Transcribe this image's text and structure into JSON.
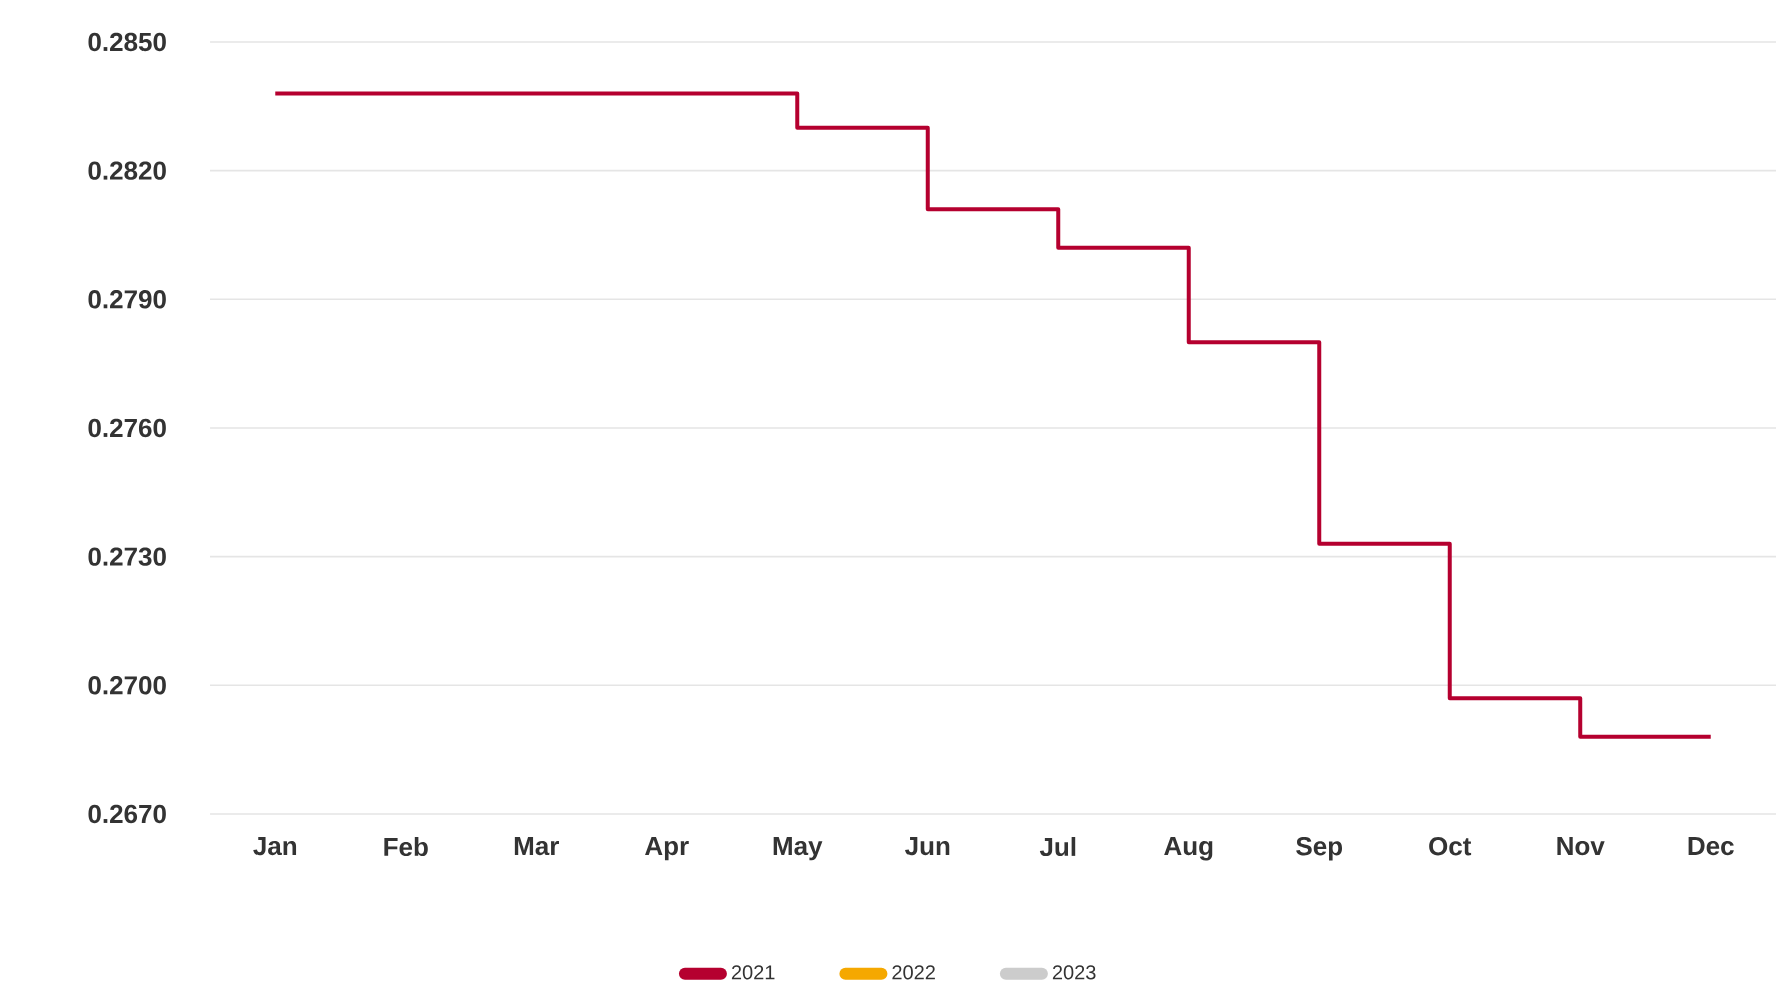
{
  "chart_data": {
    "type": "step",
    "categories": [
      "Jan",
      "Feb",
      "Mar",
      "Apr",
      "May",
      "Jun",
      "Jul",
      "Aug",
      "Sep",
      "Oct",
      "Nov",
      "Dec"
    ],
    "series": [
      {
        "name": "2021",
        "color": "#b5002f",
        "values": [
          0.2838,
          0.2838,
          0.2838,
          0.2838,
          0.283,
          0.2811,
          0.2802,
          0.278,
          0.2733,
          0.2697,
          0.2688,
          0.2688
        ]
      },
      {
        "name": "2022",
        "color": "#f5a800",
        "values": [
          null,
          null,
          null,
          null,
          null,
          null,
          null,
          null,
          null,
          null,
          null,
          null
        ]
      },
      {
        "name": "2023",
        "color": "#cccccc",
        "values": [
          null,
          null,
          null,
          null,
          null,
          null,
          null,
          null,
          null,
          null,
          null,
          null
        ]
      }
    ],
    "ylim": [
      0.267,
      0.285
    ],
    "yticks": [
      {
        "value": 0.267,
        "label": "0.2670"
      },
      {
        "value": 0.27,
        "label": "0.2700"
      },
      {
        "value": 0.273,
        "label": "0.2730"
      },
      {
        "value": 0.276,
        "label": "0.2760"
      },
      {
        "value": 0.279,
        "label": "0.2790"
      },
      {
        "value": 0.282,
        "label": "0.2820"
      },
      {
        "value": 0.285,
        "label": "0.2850"
      }
    ],
    "grid": "y",
    "legend": "bottom"
  }
}
